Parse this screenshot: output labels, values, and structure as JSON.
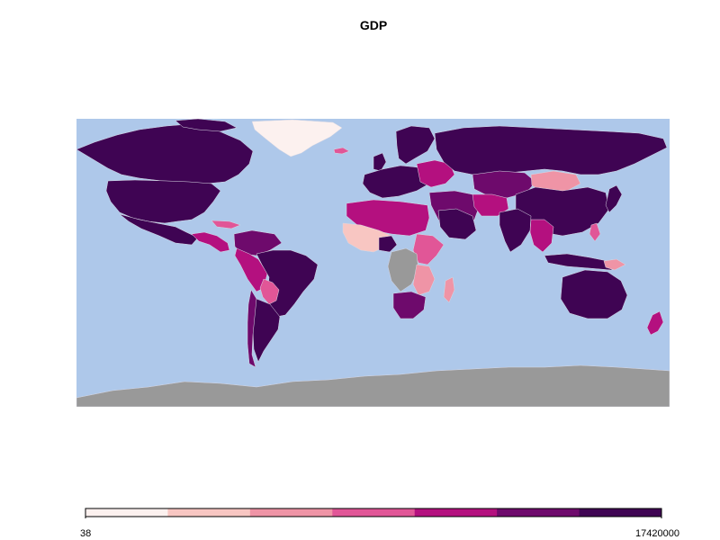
{
  "map": {
    "title": "GDP",
    "colors": {
      "ocean": "#aec8ea",
      "no_data": "#999999",
      "border": "#d8d8e4"
    }
  },
  "legend": {
    "min_label": "38",
    "max_label": "17420000",
    "min": 38,
    "max": 17420000,
    "classes": [
      {
        "color": "#fcf1ef"
      },
      {
        "color": "#f8c6c2"
      },
      {
        "color": "#ef94a6"
      },
      {
        "color": "#e15697"
      },
      {
        "color": "#b4107f"
      },
      {
        "color": "#6e0a6c"
      },
      {
        "color": "#3f0453"
      }
    ]
  }
}
